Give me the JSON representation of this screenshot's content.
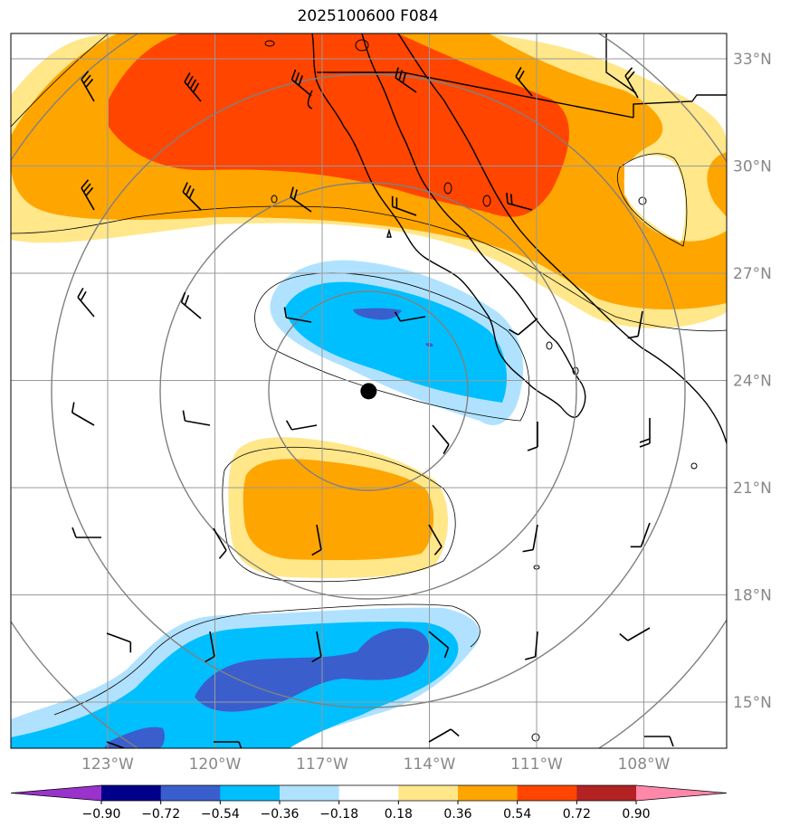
{
  "title": "2025100600 F084",
  "map": {
    "lat_labels": [
      {
        "lat": 33,
        "text": "33°N"
      },
      {
        "lat": 30,
        "text": "30°N"
      },
      {
        "lat": 27,
        "text": "27°N"
      },
      {
        "lat": 24,
        "text": "24°N"
      },
      {
        "lat": 21,
        "text": "21°N"
      },
      {
        "lat": 18,
        "text": "18°N"
      },
      {
        "lat": 15,
        "text": "15°N"
      }
    ],
    "lon_labels": [
      {
        "lon": -123,
        "text": "123°W"
      },
      {
        "lon": -120,
        "text": "120°W"
      },
      {
        "lon": -117,
        "text": "117°W"
      },
      {
        "lon": -114,
        "text": "114°W"
      },
      {
        "lon": -111,
        "text": "111°W"
      },
      {
        "lon": -108,
        "text": "108°W"
      }
    ],
    "center_marker": {
      "lon": -115.7,
      "lat": 23.7
    },
    "colors": {
      "grid": "#999999",
      "rings": "#808080",
      "coast": "#000000"
    }
  },
  "colorbar": {
    "levels": [
      "−0.90",
      "−0.72",
      "−0.54",
      "−0.36",
      "−0.18",
      "0.18",
      "0.36",
      "0.54",
      "0.72",
      "0.90"
    ],
    "colors": [
      "#9933cc",
      "#00008b",
      "#3a5fcd",
      "#00bfff",
      "#b0e2ff",
      "#ffffff",
      "#ffe78a",
      "#ffa500",
      "#ff4500",
      "#b22222",
      "#ff88aa"
    ]
  }
}
